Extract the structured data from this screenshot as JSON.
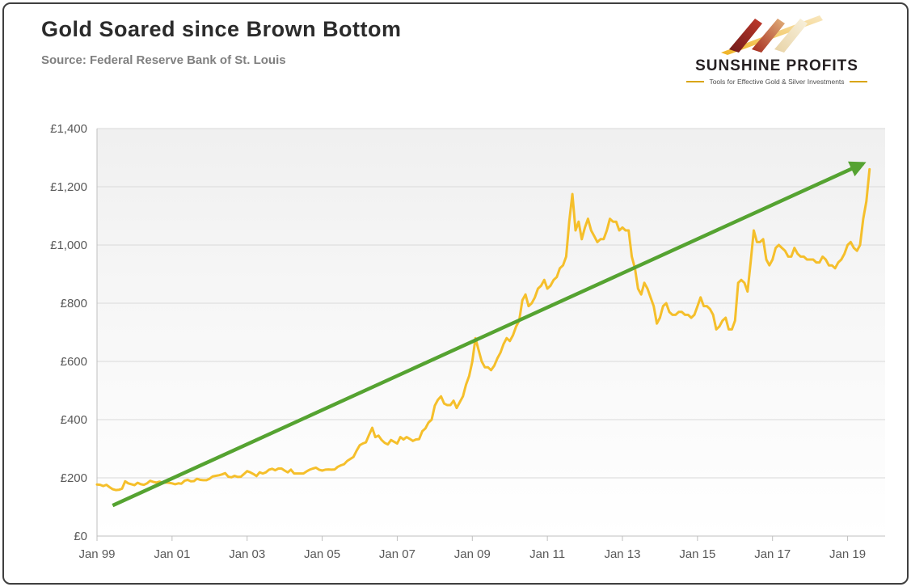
{
  "header": {
    "title": "Gold Soared since Brown Bottom",
    "source": "Source: Federal Reserve Bank of St. Louis"
  },
  "logo": {
    "brand": "SUNSHINE PROFITS",
    "tagline": "Tools for Effective Gold & Silver Investments"
  },
  "theme": {
    "gold_line": "#F5BF2B",
    "trend_green": "#55A331",
    "gridline": "#d9d9d9",
    "axis": "#bfbfbf",
    "tick_text": "#595959"
  },
  "chart_data": {
    "type": "line",
    "title": "Gold Soared since Brown Bottom",
    "subtitle": "Source: Federal Reserve Bank of St. Louis",
    "description": "Gold price in British pounds (GBP per ounce), monthly, Jan 1999 - mid 2019, with green upward trend arrow",
    "grid": "horizontal",
    "legend": "none",
    "x_axis": {
      "start": "Jan 1999",
      "frequency": "monthly",
      "tick_labels": [
        "Jan 99",
        "Jan 01",
        "Jan 03",
        "Jan 05",
        "Jan 07",
        "Jan 09",
        "Jan 11",
        "Jan 13",
        "Jan 15",
        "Jan 17",
        "Jan 19"
      ],
      "tick_month_indices": [
        0,
        24,
        48,
        72,
        96,
        120,
        144,
        168,
        192,
        216,
        240
      ],
      "total_months_span": 252
    },
    "y_axis": {
      "ylim": [
        0,
        1400
      ],
      "tick_values": [
        0,
        200,
        400,
        600,
        800,
        1000,
        1200,
        1400
      ],
      "tick_labels": [
        "£0",
        "£200",
        "£400",
        "£600",
        "£800",
        "£1,000",
        "£1,200",
        "£1,400"
      ]
    },
    "series": [
      {
        "name": "Gold price (GBP)",
        "color": "#F5BF2B",
        "values": [
          177,
          176,
          172,
          176,
          168,
          161,
          158,
          159,
          163,
          188,
          181,
          178,
          175,
          183,
          178,
          176,
          181,
          190,
          186,
          184,
          187,
          183,
          184,
          183,
          181,
          178,
          181,
          180,
          190,
          193,
          188,
          189,
          197,
          193,
          192,
          192,
          197,
          205,
          207,
          209,
          212,
          216,
          204,
          202,
          207,
          203,
          204,
          213,
          223,
          219,
          213,
          206,
          219,
          215,
          219,
          228,
          231,
          226,
          232,
          232,
          225,
          219,
          228,
          215,
          215,
          215,
          215,
          222,
          228,
          232,
          235,
          228,
          225,
          228,
          229,
          228,
          229,
          238,
          243,
          247,
          258,
          265,
          272,
          293,
          312,
          318,
          322,
          348,
          372,
          340,
          345,
          330,
          320,
          315,
          330,
          324,
          318,
          340,
          332,
          340,
          334,
          327,
          332,
          333,
          360,
          370,
          390,
          400,
          448,
          468,
          480,
          455,
          450,
          450,
          465,
          440,
          460,
          480,
          520,
          550,
          600,
          680,
          640,
          600,
          580,
          580,
          570,
          585,
          610,
          630,
          660,
          680,
          670,
          690,
          720,
          740,
          810,
          830,
          790,
          800,
          820,
          850,
          860,
          880,
          850,
          860,
          880,
          890,
          920,
          930,
          960,
          1080,
          1175,
          1050,
          1080,
          1020,
          1060,
          1090,
          1050,
          1030,
          1010,
          1020,
          1020,
          1050,
          1090,
          1080,
          1080,
          1050,
          1060,
          1050,
          1050,
          960,
          920,
          850,
          830,
          870,
          850,
          820,
          790,
          730,
          750,
          790,
          800,
          770,
          760,
          760,
          770,
          770,
          760,
          760,
          750,
          760,
          790,
          820,
          790,
          790,
          780,
          760,
          710,
          720,
          740,
          750,
          710,
          710,
          740,
          870,
          880,
          870,
          840,
          940,
          1050,
          1010,
          1010,
          1020,
          950,
          930,
          950,
          990,
          1000,
          990,
          980,
          960,
          960,
          990,
          970,
          960,
          960,
          950,
          950,
          950,
          940,
          940,
          960,
          950,
          930,
          930,
          920,
          940,
          950,
          970,
          1000,
          1010,
          990,
          980,
          1000,
          1090,
          1150,
          1260
        ]
      }
    ],
    "trend_arrow": {
      "color": "#55A331",
      "from": {
        "month_index": 5,
        "value": 105
      },
      "to": {
        "month_index": 245,
        "value": 1280
      }
    }
  }
}
